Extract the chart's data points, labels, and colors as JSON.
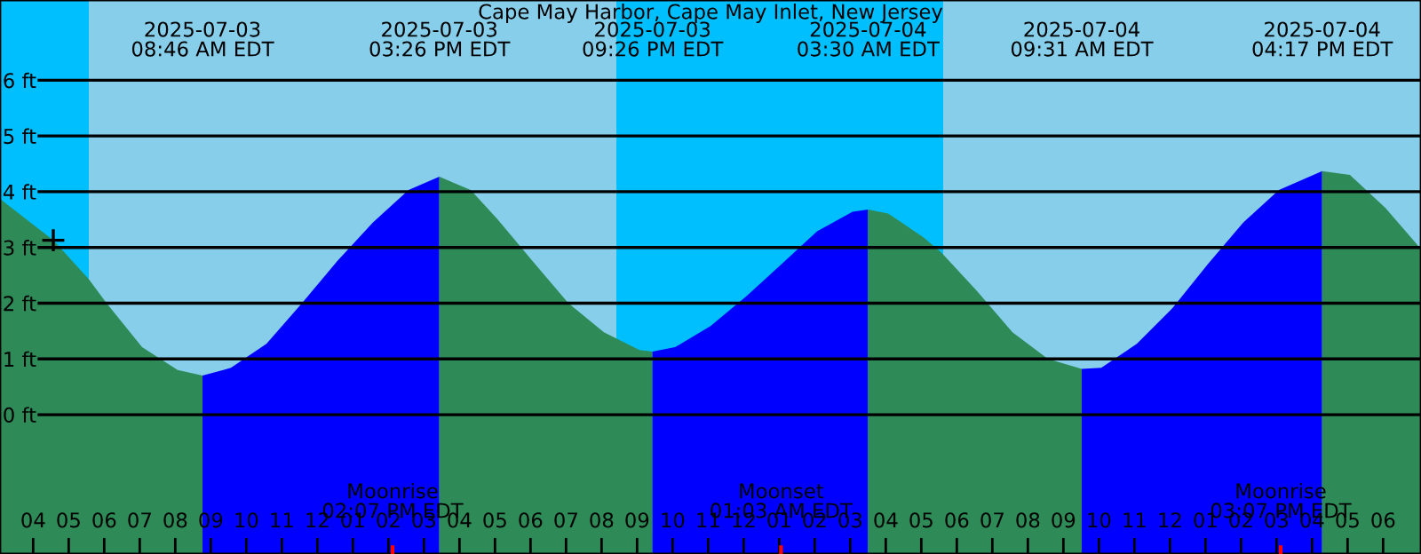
{
  "chart_data": {
    "type": "area",
    "title": "Cape May Harbor, Cape May Inlet, New Jersey",
    "xlim": [
      "2025-07-03T03:04",
      "2025-07-04T19:04"
    ],
    "ylim": [
      -2.5,
      7.44
    ],
    "xticks": [
      {
        "value": "2025-07-03T04:00",
        "label": "04"
      },
      {
        "value": "2025-07-03T05:00",
        "label": "05"
      },
      {
        "value": "2025-07-03T06:00",
        "label": "06"
      },
      {
        "value": "2025-07-03T07:00",
        "label": "07"
      },
      {
        "value": "2025-07-03T08:00",
        "label": "08"
      },
      {
        "value": "2025-07-03T09:00",
        "label": "09"
      },
      {
        "value": "2025-07-03T10:00",
        "label": "10"
      },
      {
        "value": "2025-07-03T11:00",
        "label": "11"
      },
      {
        "value": "2025-07-03T12:00",
        "label": "12"
      },
      {
        "value": "2025-07-03T13:00",
        "label": "01"
      },
      {
        "value": "2025-07-03T14:00",
        "label": "02"
      },
      {
        "value": "2025-07-03T15:00",
        "label": "03"
      },
      {
        "value": "2025-07-03T16:00",
        "label": "04"
      },
      {
        "value": "2025-07-03T17:00",
        "label": "05"
      },
      {
        "value": "2025-07-03T18:00",
        "label": "06"
      },
      {
        "value": "2025-07-03T19:00",
        "label": "07"
      },
      {
        "value": "2025-07-03T20:00",
        "label": "08"
      },
      {
        "value": "2025-07-03T21:00",
        "label": "09"
      },
      {
        "value": "2025-07-03T22:00",
        "label": "10"
      },
      {
        "value": "2025-07-03T23:00",
        "label": "11"
      },
      {
        "value": "2025-07-04T00:00",
        "label": "12"
      },
      {
        "value": "2025-07-04T01:00",
        "label": "01"
      },
      {
        "value": "2025-07-04T02:00",
        "label": "02"
      },
      {
        "value": "2025-07-04T03:00",
        "label": "03"
      },
      {
        "value": "2025-07-04T04:00",
        "label": "04"
      },
      {
        "value": "2025-07-04T05:00",
        "label": "05"
      },
      {
        "value": "2025-07-04T06:00",
        "label": "06"
      },
      {
        "value": "2025-07-04T07:00",
        "label": "07"
      },
      {
        "value": "2025-07-04T08:00",
        "label": "08"
      },
      {
        "value": "2025-07-04T09:00",
        "label": "09"
      },
      {
        "value": "2025-07-04T10:00",
        "label": "10"
      },
      {
        "value": "2025-07-04T11:00",
        "label": "11"
      },
      {
        "value": "2025-07-04T12:00",
        "label": "12"
      },
      {
        "value": "2025-07-04T13:00",
        "label": "01"
      },
      {
        "value": "2025-07-04T14:00",
        "label": "02"
      },
      {
        "value": "2025-07-04T15:00",
        "label": "03"
      },
      {
        "value": "2025-07-04T16:00",
        "label": "04"
      },
      {
        "value": "2025-07-04T17:00",
        "label": "05"
      },
      {
        "value": "2025-07-04T18:00",
        "label": "06"
      }
    ],
    "yticks": [
      {
        "value": 0,
        "label": "0 ft"
      },
      {
        "value": 1,
        "label": "1 ft"
      },
      {
        "value": 2,
        "label": "2 ft"
      },
      {
        "value": 3,
        "label": "3 ft"
      },
      {
        "value": 4,
        "label": "4 ft"
      },
      {
        "value": 5,
        "label": "5 ft"
      },
      {
        "value": 6,
        "label": "6 ft"
      }
    ],
    "grid": "y",
    "bands": [
      {
        "axis": "x",
        "from": "2025-07-03T03:04",
        "to": "2025-07-03T05:34",
        "color": "#00bfff"
      },
      {
        "axis": "x",
        "from": "2025-07-03T05:34",
        "to": "2025-07-03T20:25",
        "color": "#87ceeb"
      },
      {
        "axis": "x",
        "from": "2025-07-03T20:25",
        "to": "2025-07-04T05:37",
        "color": "#00bfff"
      },
      {
        "axis": "x",
        "from": "2025-07-04T05:37",
        "to": "2025-07-04T19:04",
        "color": "#87ceeb"
      }
    ],
    "series": [
      {
        "color": "#2e8b57",
        "x": [
          "2025-07-03T03:04",
          "2025-07-03T04:34",
          "2025-07-03T05:34",
          "2025-07-03T06:04",
          "2025-07-03T07:04",
          "2025-07-03T08:04",
          "2025-07-03T08:46"
        ],
        "values": [
          3.87,
          3.13,
          2.43,
          2.0,
          1.21,
          0.8,
          0.7
        ]
      },
      {
        "color": "#0000ff",
        "x": [
          "2025-07-03T08:46",
          "2025-07-03T09:34",
          "2025-07-03T10:34",
          "2025-07-03T11:34",
          "2025-07-03T12:34",
          "2025-07-03T13:34",
          "2025-07-03T14:34",
          "2025-07-03T15:26"
        ],
        "values": [
          0.7,
          0.84,
          1.27,
          2.0,
          2.76,
          3.45,
          4.03,
          4.27
        ]
      },
      {
        "color": "#2e8b57",
        "x": [
          "2025-07-03T15:26",
          "2025-07-03T16:19",
          "2025-07-03T17:04",
          "2025-07-03T18:04",
          "2025-07-03T19:04",
          "2025-07-03T20:04",
          "2025-07-03T21:04",
          "2025-07-03T21:26"
        ],
        "values": [
          4.27,
          4.03,
          3.51,
          2.75,
          2.0,
          1.48,
          1.16,
          1.13
        ]
      },
      {
        "color": "#0000ff",
        "x": [
          "2025-07-03T21:26",
          "2025-07-03T22:04",
          "2025-07-03T23:04",
          "2025-07-04T00:04",
          "2025-07-04T01:04",
          "2025-07-04T02:04",
          "2025-07-04T03:04",
          "2025-07-04T03:30"
        ],
        "values": [
          1.13,
          1.21,
          1.59,
          2.12,
          2.7,
          3.29,
          3.64,
          3.68
        ]
      },
      {
        "color": "#2e8b57",
        "x": [
          "2025-07-04T03:30",
          "2025-07-04T04:04",
          "2025-07-04T05:04",
          "2025-07-04T05:34",
          "2025-07-04T06:34",
          "2025-07-04T07:34",
          "2025-07-04T08:34",
          "2025-07-04T09:31"
        ],
        "values": [
          3.68,
          3.61,
          3.18,
          2.91,
          2.22,
          1.48,
          1.0,
          0.82
        ]
      },
      {
        "color": "#0000ff",
        "x": [
          "2025-07-04T09:31",
          "2025-07-04T10:04",
          "2025-07-04T11:04",
          "2025-07-04T12:04",
          "2025-07-04T13:04",
          "2025-07-04T14:04",
          "2025-07-04T15:04",
          "2025-07-04T16:17"
        ],
        "values": [
          0.82,
          0.84,
          1.27,
          1.91,
          2.7,
          3.45,
          4.03,
          4.37
        ]
      },
      {
        "color": "#2e8b57",
        "x": [
          "2025-07-04T16:17",
          "2025-07-04T17:04",
          "2025-07-04T18:04",
          "2025-07-04T19:04"
        ],
        "values": [
          4.37,
          4.3,
          3.71,
          2.97
        ]
      },
      {
        "type": "scatter",
        "marker": "cross",
        "color": "#000000",
        "x": [
          "2025-07-03T04:34"
        ],
        "values": [
          3.13
        ]
      }
    ],
    "annotations": [
      "2025-07-03\n08:46 AM EDT",
      "2025-07-03\n03:26 PM EDT",
      "2025-07-03\n09:26 PM EDT",
      "2025-07-04\n03:30 AM EDT",
      "2025-07-04\n09:31 AM EDT",
      "2025-07-04\n04:17 PM EDT",
      {
        "text": "Moonrise\n02:07 PM EDT",
        "x": "2025-07-03T14:07",
        "y": -2.5
      },
      {
        "text": "Moonset\n01:03 AM EDT",
        "x": "2025-07-04T01:03",
        "y": -2.5
      },
      {
        "text": "Moonrise\n03:07 PM EDT",
        "x": "2025-07-04T15:07",
        "y": -2.5
      }
    ]
  }
}
